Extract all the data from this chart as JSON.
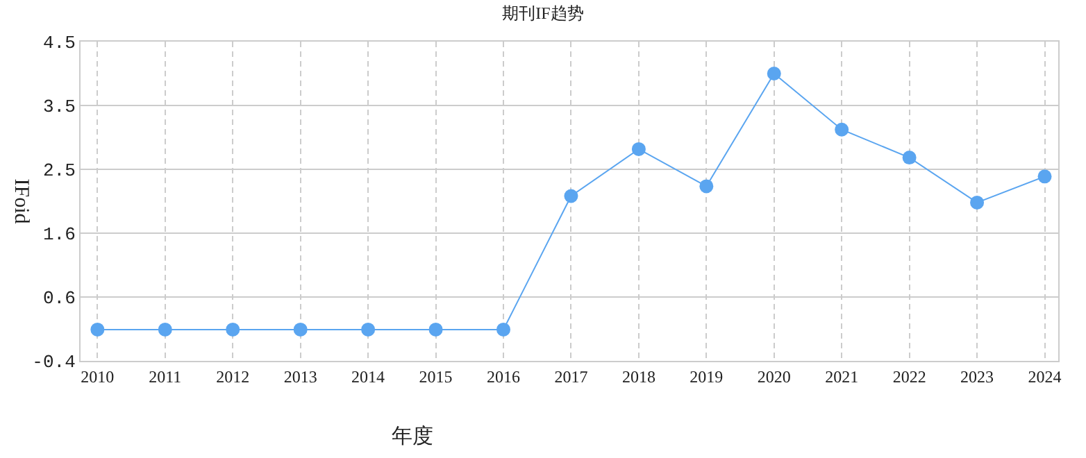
{
  "chart_data": {
    "type": "line",
    "title": "期刊IF趋势",
    "xlabel": "年度",
    "ylabel": "IFoid",
    "categories": [
      "2010",
      "2011",
      "2012",
      "2013",
      "2014",
      "2015",
      "2016",
      "2017",
      "2018",
      "2019",
      "2020",
      "2021",
      "2022",
      "2023",
      "2024"
    ],
    "series": [
      {
        "color": "#5aa5f0",
        "values": [
          0.08,
          0.08,
          0.08,
          0.08,
          0.08,
          0.08,
          0.08,
          2.13,
          2.85,
          2.28,
          4.01,
          3.15,
          2.72,
          2.03,
          2.43
        ]
      }
    ],
    "ylim": [
      -0.4,
      4.5
    ],
    "yticks": [
      -0.4,
      {
        "value": 0.58,
        "label": "0.6"
      },
      {
        "value": 1.56,
        "label": "1.6"
      },
      {
        "value": 2.54,
        "label": "2.5"
      },
      {
        "value": 3.52,
        "label": "3.5"
      },
      4.5
    ],
    "grid": true,
    "marker": "circle",
    "line_style": "solid"
  }
}
